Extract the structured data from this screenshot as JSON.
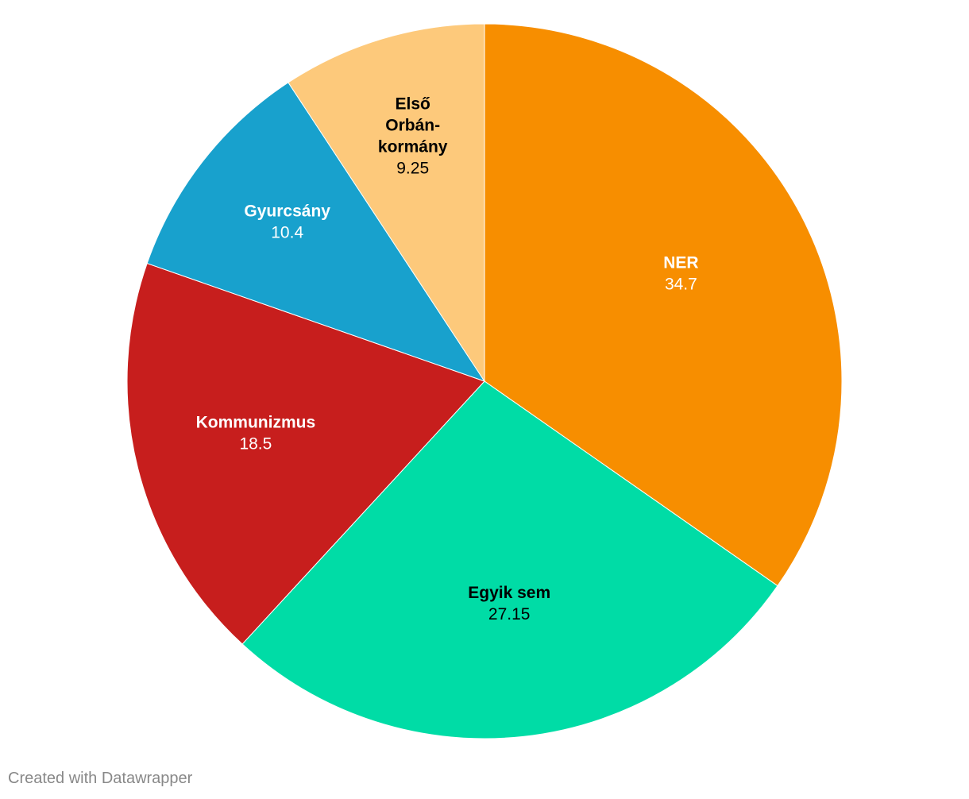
{
  "chart_data": {
    "type": "pie",
    "slices": [
      {
        "label": "NER",
        "value": 34.7,
        "value_text": "34.7",
        "color": "#f78e00",
        "label_color": "#ffffff"
      },
      {
        "label": "Egyik sem",
        "value": 27.15,
        "value_text": "27.15",
        "color": "#00dca6",
        "label_color": "#000000"
      },
      {
        "label": "Kommunizmus",
        "value": 18.5,
        "value_text": "18.5",
        "color": "#c71e1d",
        "label_color": "#ffffff"
      },
      {
        "label": "Gyurcsány",
        "value": 10.4,
        "value_text": "10.4",
        "color": "#18a1cd",
        "label_color": "#ffffff"
      },
      {
        "label": "Első Orbán-kormány",
        "value": 9.25,
        "value_text": "9.25",
        "color": "#fdc97b",
        "label_color": "#000000"
      }
    ],
    "start": "12 o'clock",
    "direction": "clockwise",
    "legend": "none"
  },
  "footer": {
    "credit": "Created with Datawrapper"
  }
}
